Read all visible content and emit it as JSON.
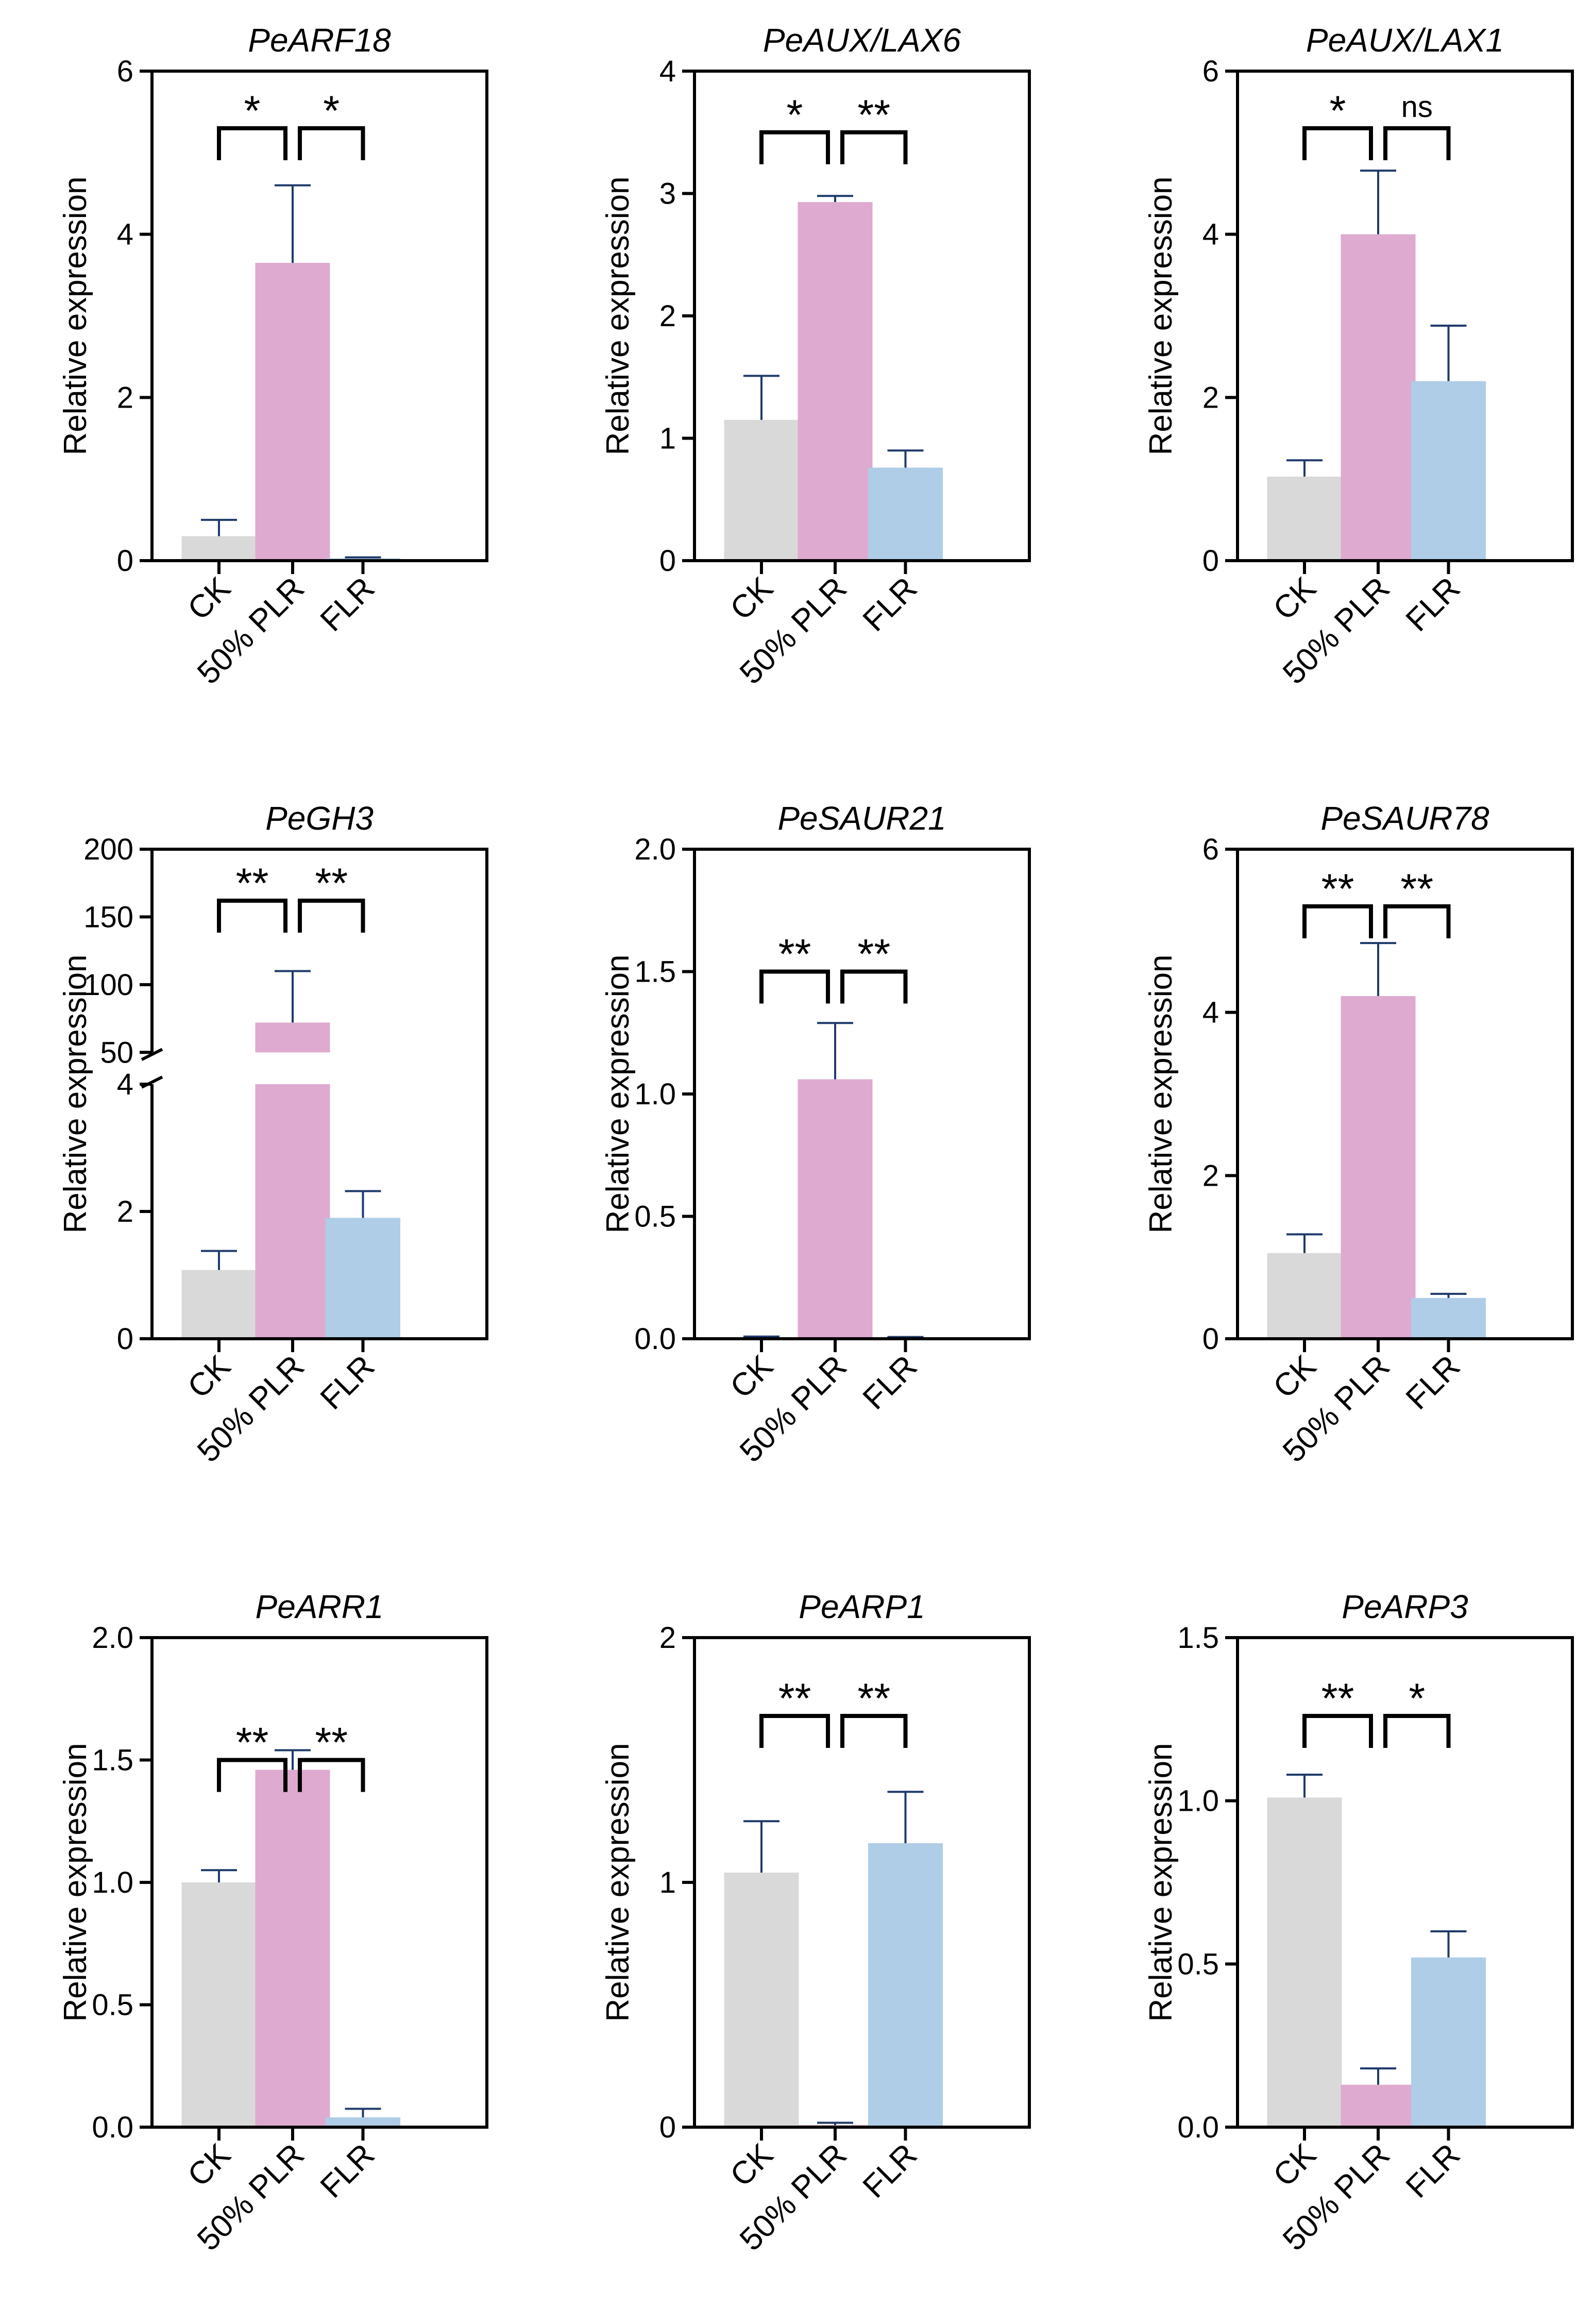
{
  "colors": {
    "CK": "#d9d9d9",
    "50% PLR": "#deaad0",
    "FLR": "#afcde6",
    "error": "#1f3a6b"
  },
  "chart_data": [
    {
      "type": "bar",
      "title": "PeARF18",
      "ylabel": "Relative expression",
      "categories": [
        "CK",
        "50% PLR",
        "FLR"
      ],
      "values": [
        0.3,
        3.65,
        0.03
      ],
      "errors": [
        0.2,
        0.95,
        0.01
      ],
      "ylim": [
        0,
        6
      ],
      "yticks": [
        0,
        2,
        4,
        6
      ],
      "ytick_labels": [
        "0",
        "2",
        "4",
        "6"
      ],
      "sig": [
        "*",
        "*"
      ],
      "sig_y": 5.3
    },
    {
      "type": "bar",
      "title": "PeAUX/LAX6",
      "ylabel": "Relative expression",
      "categories": [
        "CK",
        "50% PLR",
        "FLR"
      ],
      "values": [
        1.15,
        2.93,
        0.76
      ],
      "errors": [
        0.36,
        0.05,
        0.14
      ],
      "ylim": [
        0,
        4
      ],
      "yticks": [
        0,
        1,
        2,
        3,
        4
      ],
      "ytick_labels": [
        "0",
        "1",
        "2",
        "3",
        "4"
      ],
      "sig": [
        "*",
        "**"
      ],
      "sig_y": 3.5
    },
    {
      "type": "bar",
      "title": "PeAUX/LAX1",
      "ylabel": "Relative expression",
      "categories": [
        "CK",
        "50% PLR",
        "FLR"
      ],
      "values": [
        1.03,
        4.0,
        2.2
      ],
      "errors": [
        0.2,
        0.78,
        0.68
      ],
      "ylim": [
        0,
        6
      ],
      "yticks": [
        0,
        2,
        4,
        6
      ],
      "ytick_labels": [
        "0",
        "2",
        "4",
        "6"
      ],
      "sig": [
        "*",
        "ns"
      ],
      "sig_y": 5.3
    },
    {
      "type": "bar",
      "title": "PeGH3",
      "ylabel": "Relative expression",
      "categories": [
        "CK",
        "50% PLR",
        "FLR"
      ],
      "values": [
        1.08,
        72,
        1.9
      ],
      "errors": [
        0.3,
        38,
        0.42
      ],
      "ylim": [
        0,
        200
      ],
      "broken_axis": {
        "lower": [
          0,
          4
        ],
        "upper": [
          50,
          200
        ]
      },
      "yticks": [
        0,
        2,
        4,
        50,
        100,
        150,
        200
      ],
      "ytick_labels": [
        "0",
        "2",
        "4",
        "50",
        "100",
        "150",
        "200"
      ],
      "sig": [
        "**",
        "**"
      ],
      "sig_y": 162
    },
    {
      "type": "bar",
      "title": "PeSAUR21",
      "ylabel": "Relative expression",
      "categories": [
        "CK",
        "50% PLR",
        "FLR"
      ],
      "values": [
        0.005,
        1.06,
        0.004
      ],
      "errors": [
        0.004,
        0.23,
        0.003
      ],
      "ylim": [
        0,
        2.0
      ],
      "yticks": [
        0,
        0.5,
        1.0,
        1.5,
        2.0
      ],
      "ytick_labels": [
        "0.0",
        "0.5",
        "1.0",
        "1.5",
        "2.0"
      ],
      "sig": [
        "**",
        "**"
      ],
      "sig_y": 1.5
    },
    {
      "type": "bar",
      "title": "PeSAUR78",
      "ylabel": "Relative expression",
      "categories": [
        "CK",
        "50% PLR",
        "FLR"
      ],
      "values": [
        1.05,
        4.2,
        0.5
      ],
      "errors": [
        0.23,
        0.65,
        0.05
      ],
      "ylim": [
        0,
        6
      ],
      "yticks": [
        0,
        2,
        4,
        6
      ],
      "ytick_labels": [
        "0",
        "2",
        "4",
        "6"
      ],
      "sig": [
        "**",
        "**"
      ],
      "sig_y": 5.3
    },
    {
      "type": "bar",
      "title": "PeARR1",
      "ylabel": "Relative expression",
      "categories": [
        "CK",
        "50% PLR",
        "FLR"
      ],
      "values": [
        1.0,
        1.46,
        0.04
      ],
      "errors": [
        0.05,
        0.08,
        0.035
      ],
      "ylim": [
        0,
        2.0
      ],
      "yticks": [
        0,
        0.5,
        1.0,
        1.5,
        2.0
      ],
      "ytick_labels": [
        "0.0",
        "0.5",
        "1.0",
        "1.5",
        "2.0"
      ],
      "sig": [
        "**",
        "**"
      ],
      "sig_y": 1.5
    },
    {
      "type": "bar",
      "title": "PeARP1",
      "ylabel": "Relative expression",
      "categories": [
        "CK",
        "50% PLR",
        "FLR"
      ],
      "values": [
        1.04,
        0.008,
        1.16
      ],
      "errors": [
        0.21,
        0.01,
        0.21
      ],
      "ylim": [
        0,
        2
      ],
      "yticks": [
        0,
        1,
        2
      ],
      "ytick_labels": [
        "0",
        "1",
        "2"
      ],
      "sig": [
        "**",
        "**"
      ],
      "sig_y": 1.68
    },
    {
      "type": "bar",
      "title": "PeARP3",
      "ylabel": "Relative expression",
      "categories": [
        "CK",
        "50% PLR",
        "FLR"
      ],
      "values": [
        1.01,
        0.13,
        0.52
      ],
      "errors": [
        0.07,
        0.05,
        0.08
      ],
      "ylim": [
        0,
        1.5
      ],
      "yticks": [
        0,
        0.5,
        1.0,
        1.5
      ],
      "ytick_labels": [
        "0.0",
        "0.5",
        "1.0",
        "1.5"
      ],
      "sig": [
        "**",
        "*"
      ],
      "sig_y": 1.26
    }
  ]
}
